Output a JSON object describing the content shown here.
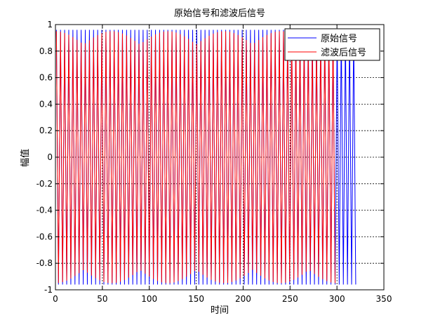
{
  "chart_data": {
    "type": "line",
    "title": "原始信号和滤波后信号",
    "xlabel": "时间",
    "ylabel": "幅值",
    "xlim": [
      0,
      350
    ],
    "ylim": [
      -1,
      1
    ],
    "x_ticks": [
      0,
      50,
      100,
      150,
      200,
      250,
      300,
      350
    ],
    "y_ticks": [
      -1,
      -0.8,
      -0.6,
      -0.4,
      -0.2,
      0,
      0.2,
      0.4,
      0.6,
      0.8,
      1
    ],
    "x_tick_labels": [
      "0",
      "50",
      "100",
      "150",
      "200",
      "250",
      "300",
      "350"
    ],
    "y_tick_labels": [
      "-1",
      "-0.8",
      "-0.6",
      "-0.4",
      "-0.2",
      "0",
      "0.2",
      "0.4",
      "0.6",
      "0.8",
      "1"
    ],
    "grid": true,
    "grid_style": "dotted",
    "legend_position": "top-right",
    "series": [
      {
        "name": "原始信号",
        "color": "#0000ff",
        "x_start": 1,
        "x_end": 320,
        "period": 4.4,
        "amplitude": 0.96,
        "approximate": true
      },
      {
        "name": "滤波后信号",
        "color": "#ff0000",
        "x_start": 1,
        "x_end": 300,
        "period": 4.4,
        "amplitude_base": 0.85,
        "amplitude_beat_depth": 0.1,
        "beat_period": 60,
        "approximate": true
      }
    ]
  }
}
